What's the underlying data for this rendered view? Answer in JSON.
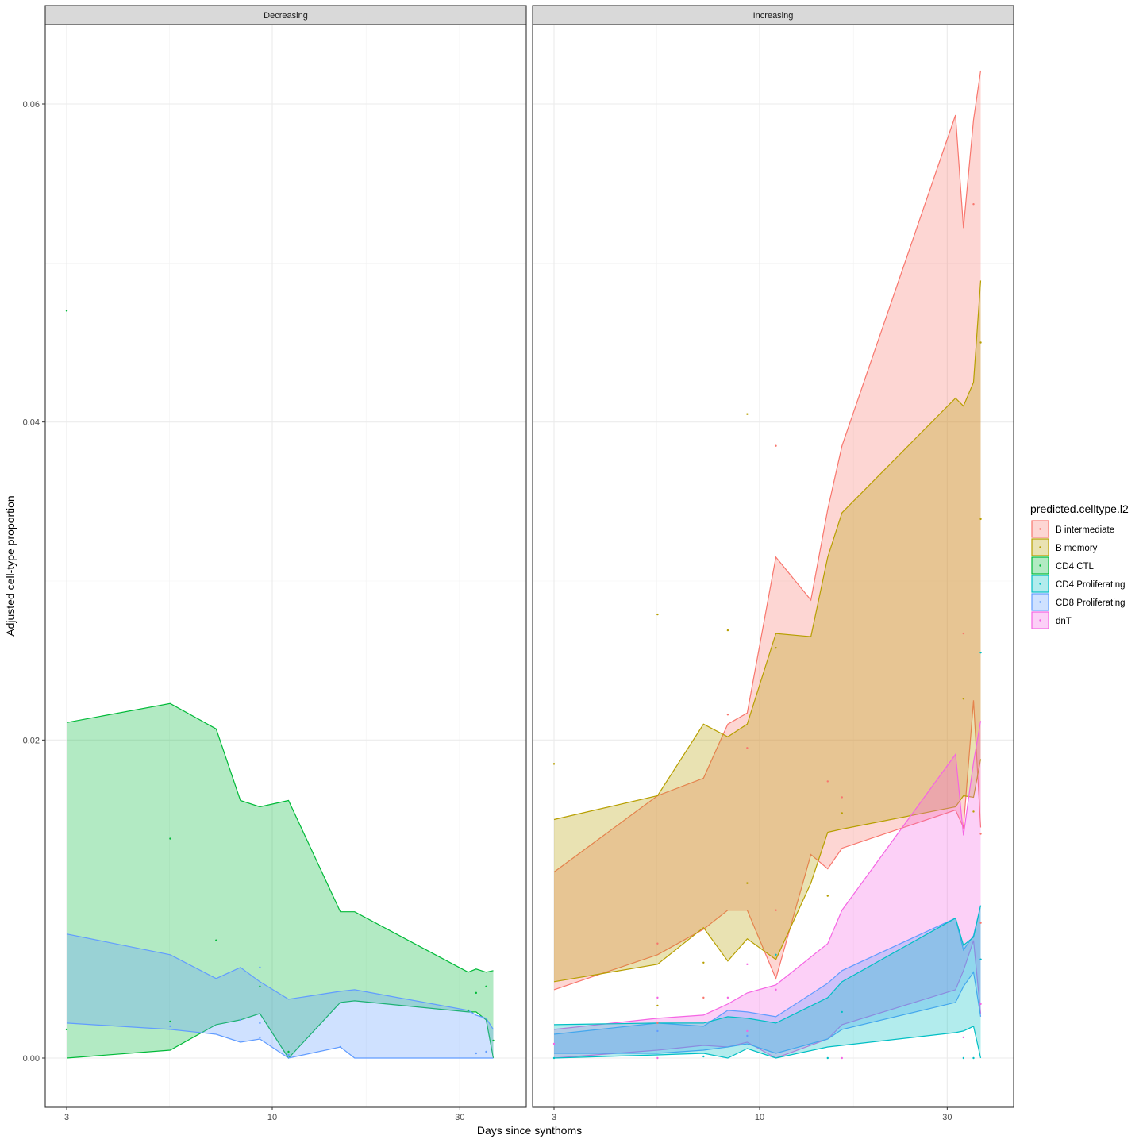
{
  "chart_data": {
    "type": "area",
    "xlabel": "Days since synthoms",
    "ylabel": "Adjusted cell-type proportion",
    "x_scale": "log10",
    "x_ticks": [
      3,
      10,
      30
    ],
    "x_tick_labels": [
      "3",
      "10",
      "30"
    ],
    "y_ticks": [
      0,
      0.02,
      0.04,
      0.06
    ],
    "y_tick_labels": [
      "0.00",
      "0.02",
      "0.04",
      "0.06"
    ],
    "ylim": [
      -0.003,
      0.065
    ],
    "grid": true,
    "legend": {
      "title": "predicted.celltype.l2",
      "position": "right",
      "entries": [
        "B intermediate",
        "B memory",
        "CD4 CTL",
        "CD4 Proliferating",
        "CD8 Proliferating",
        "dnT"
      ]
    },
    "colors": {
      "B intermediate": "#F8766D",
      "B memory": "#B79F00",
      "CD4 CTL": "#00BA38",
      "CD4 Proliferating": "#00BFC4",
      "CD8 Proliferating": "#619CFF",
      "dnT": "#F564E3"
    },
    "panels": [
      {
        "title": "Decreasing",
        "series": [
          {
            "name": "CD4 CTL",
            "x": [
              3,
              5.5,
              7.2,
              8.3,
              9.3,
              11,
              14.9,
              16.2,
              31.5,
              33,
              35,
              36.5
            ],
            "upper": [
              0.0211,
              0.0223,
              0.0207,
              0.0162,
              0.0158,
              0.0162,
              0.0092,
              0.0092,
              0.0054,
              0.0056,
              0.0054,
              0.0055
            ],
            "lower": [
              0.0,
              0.0005,
              0.0021,
              0.0024,
              0.0028,
              0.0,
              0.0035,
              0.0036,
              0.0029,
              0.0029,
              0.0024,
              0.0
            ],
            "points": [
              [
                3,
                0.047
              ],
              [
                5.5,
                0.0138
              ],
              [
                7.2,
                0.0074
              ],
              [
                9.3,
                0.0045
              ],
              [
                11,
                0.0004
              ],
              [
                31.5,
                0.003
              ],
              [
                33,
                0.0041
              ],
              [
                35,
                0.0045
              ],
              [
                36.5,
                0.0011
              ],
              [
                3,
                0.0018
              ],
              [
                5.5,
                0.0023
              ]
            ]
          },
          {
            "name": "CD8 Proliferating",
            "x": [
              3,
              5.5,
              7.2,
              8.3,
              9.3,
              11,
              14.9,
              16.2,
              31.5,
              33,
              35,
              36.5
            ],
            "upper": [
              0.0078,
              0.0065,
              0.005,
              0.0057,
              0.0048,
              0.0037,
              0.0042,
              0.0043,
              0.003,
              0.0027,
              0.0025,
              0.0018
            ],
            "lower": [
              0.0022,
              0.0018,
              0.0015,
              0.001,
              0.0012,
              0.0,
              0.0007,
              0.0,
              0.0,
              0.0,
              0.0,
              0.0
            ],
            "points": [
              [
                5.5,
                0.002
              ],
              [
                8.3,
                0.0024
              ],
              [
                9.3,
                0.0057
              ],
              [
                9.3,
                0.0022
              ],
              [
                9.3,
                0.0013
              ],
              [
                14.9,
                0.0007
              ],
              [
                33,
                0.0003
              ],
              [
                35,
                0.0004
              ],
              [
                11,
                0.0002
              ]
            ]
          }
        ]
      },
      {
        "title": "Increasing",
        "series": [
          {
            "name": "B intermediate",
            "x": [
              3,
              5.5,
              7.2,
              8.3,
              9.3,
              11,
              13.5,
              14.9,
              16.2,
              31.5,
              33,
              35,
              36.5
            ],
            "upper": [
              0.0117,
              0.0165,
              0.0176,
              0.021,
              0.0217,
              0.0315,
              0.0288,
              0.0345,
              0.0385,
              0.0593,
              0.0522,
              0.059,
              0.0621
            ],
            "lower": [
              0.0043,
              0.0065,
              0.0081,
              0.0093,
              0.0093,
              0.005,
              0.0128,
              0.0119,
              0.0132,
              0.0156,
              0.0145,
              0.0225,
              0.0145
            ],
            "points": [
              [
                8.3,
                0.0216
              ],
              [
                9.3,
                0.0195
              ],
              [
                11,
                0.0385
              ],
              [
                11,
                0.0093
              ],
              [
                14.9,
                0.0174
              ],
              [
                16.2,
                0.0164
              ],
              [
                33,
                0.0267
              ],
              [
                35,
                0.0537
              ],
              [
                36.5,
                0.0141
              ],
              [
                36.5,
                0.0085
              ],
              [
                5.5,
                0.0072
              ],
              [
                5.5,
                0.0022
              ],
              [
                7.2,
                0.0038
              ]
            ]
          },
          {
            "name": "B memory",
            "x": [
              3,
              5.5,
              7.2,
              8.3,
              9.3,
              11,
              13.5,
              14.9,
              16.2,
              31.5,
              33,
              35,
              36.5
            ],
            "upper": [
              0.015,
              0.0165,
              0.021,
              0.0202,
              0.021,
              0.0267,
              0.0265,
              0.0315,
              0.0343,
              0.0415,
              0.041,
              0.0425,
              0.0489
            ],
            "lower": [
              0.0048,
              0.0059,
              0.0082,
              0.0061,
              0.0075,
              0.0062,
              0.011,
              0.0142,
              0.0144,
              0.0158,
              0.0165,
              0.0164,
              0.0188
            ],
            "points": [
              [
                3,
                0.0185
              ],
              [
                5.5,
                0.0279
              ],
              [
                5.5,
                0.0033
              ],
              [
                7.2,
                0.006
              ],
              [
                8.3,
                0.0269
              ],
              [
                9.3,
                0.0405
              ],
              [
                9.3,
                0.011
              ],
              [
                11,
                0.0258
              ],
              [
                14.9,
                0.0102
              ],
              [
                16.2,
                0.0154
              ],
              [
                33,
                0.0226
              ],
              [
                35,
                0.0155
              ],
              [
                36.5,
                0.045
              ],
              [
                36.5,
                0.0339
              ]
            ]
          },
          {
            "name": "dnT",
            "x": [
              3,
              5.5,
              7.2,
              8.3,
              9.3,
              11,
              14.9,
              16.2,
              31.5,
              33,
              35,
              36.5
            ],
            "upper": [
              0.0018,
              0.0025,
              0.0027,
              0.0034,
              0.0041,
              0.0046,
              0.0072,
              0.0093,
              0.0191,
              0.014,
              0.0186,
              0.0212
            ],
            "lower": [
              0.0,
              0.0005,
              0.0008,
              0.0007,
              0.001,
              0.0,
              0.0012,
              0.0021,
              0.0043,
              0.0055,
              0.0074,
              0.0028
            ],
            "points": [
              [
                3,
                0.0009
              ],
              [
                5.5,
                0.0038
              ],
              [
                5.5,
                0.0
              ],
              [
                8.3,
                0.0038
              ],
              [
                9.3,
                0.0059
              ],
              [
                9.3,
                0.0017
              ],
              [
                11,
                0.0043
              ],
              [
                16.2,
                0.0
              ],
              [
                33,
                0.0013
              ],
              [
                36.5,
                0.0034
              ]
            ]
          },
          {
            "name": "CD8 Proliferating",
            "x": [
              3,
              5.5,
              7.2,
              8.3,
              9.3,
              11,
              14.9,
              16.2,
              31.5,
              33,
              35,
              36.5
            ],
            "upper": [
              0.0015,
              0.0022,
              0.002,
              0.003,
              0.0029,
              0.0026,
              0.0047,
              0.0055,
              0.0088,
              0.0068,
              0.0077,
              0.0096
            ],
            "lower": [
              0.0003,
              0.0003,
              0.0005,
              0.0007,
              0.0009,
              0.0003,
              0.0012,
              0.0018,
              0.0035,
              0.0045,
              0.0054,
              0.0026
            ],
            "points": [
              [
                9.3,
                0.0014
              ],
              [
                5.5,
                0.0017
              ],
              [
                36.5,
                0.0062
              ]
            ]
          },
          {
            "name": "CD4 Proliferating",
            "x": [
              3,
              5.5,
              7.2,
              8.3,
              9.3,
              11,
              14.9,
              16.2,
              31.5,
              33,
              35,
              36.5
            ],
            "upper": [
              0.0021,
              0.0022,
              0.0022,
              0.0026,
              0.0025,
              0.0022,
              0.0038,
              0.0048,
              0.0088,
              0.0071,
              0.0076,
              0.0096
            ],
            "lower": [
              0.0,
              0.0002,
              0.0003,
              0.0,
              0.0006,
              0.0,
              0.0007,
              0.0008,
              0.0016,
              0.0017,
              0.002,
              0.0
            ],
            "points": [
              [
                3,
                0.0
              ],
              [
                7.2,
                0.0001
              ],
              [
                11,
                0.0065
              ],
              [
                14.9,
                0.0
              ],
              [
                16.2,
                0.0029
              ],
              [
                33,
                0.0
              ],
              [
                35,
                0.0
              ],
              [
                36.5,
                0.0255
              ],
              [
                36.5,
                0.0062
              ]
            ]
          }
        ]
      }
    ]
  }
}
